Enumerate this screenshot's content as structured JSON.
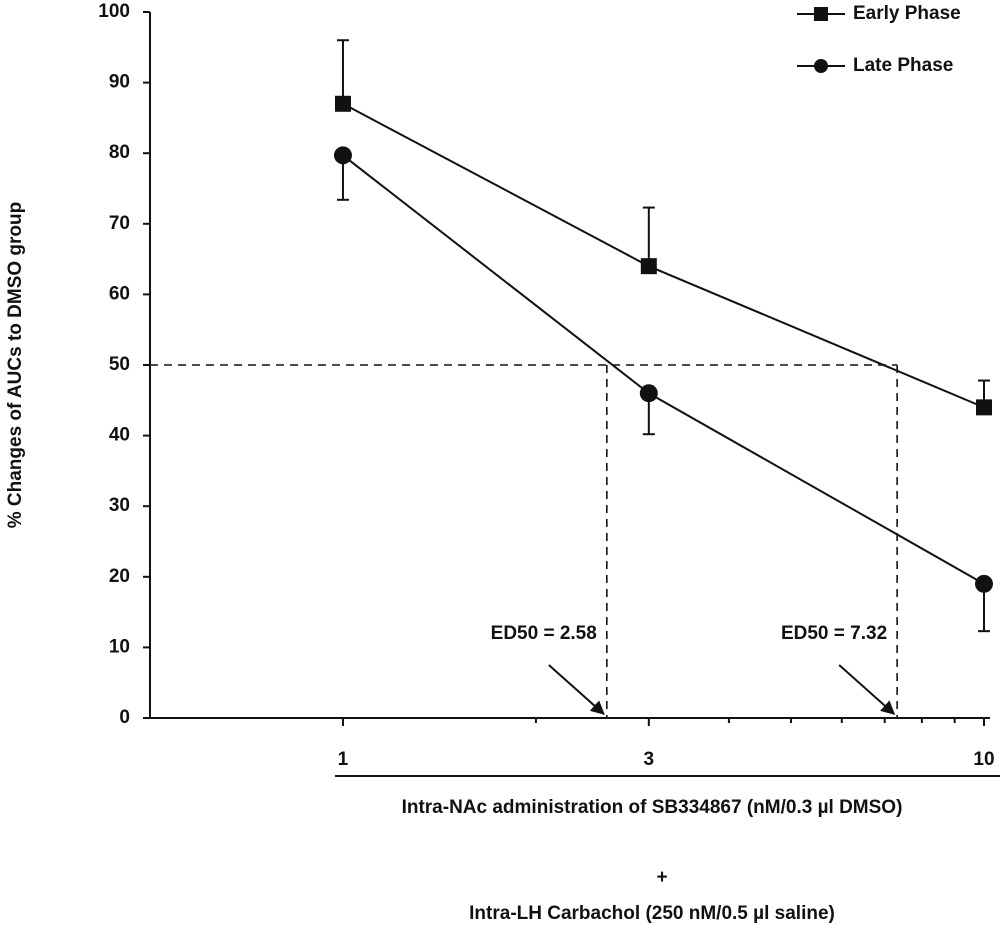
{
  "chart_data": {
    "type": "line",
    "y_label": "% Changes of AUCs to DMSO group",
    "x_label": [
      "Intra-NAc administration of SB334867 (nM/0.3 µl DMSO)",
      "+",
      "Intra-LH Carbachol (250 nM/0.5 µl saline)"
    ],
    "x": [
      1,
      3,
      10
    ],
    "xlim": [
      0.5,
      10
    ],
    "xticks": [
      1,
      3,
      10
    ],
    "xminor_ticks": [
      2,
      4,
      5,
      6,
      7,
      8,
      9
    ],
    "xscale": "log",
    "ylim": [
      0,
      100
    ],
    "yticks": [
      0,
      10,
      20,
      30,
      40,
      50,
      60,
      70,
      80,
      90,
      100
    ],
    "series": [
      {
        "name": "Early Phase",
        "color": "#111111",
        "marker": "square",
        "values": [
          87,
          64,
          44
        ],
        "errors": [
          9,
          8.3,
          3.8
        ],
        "error_direction": "up"
      },
      {
        "name": "Late Phase",
        "color": "#111111",
        "marker": "circle",
        "values": [
          79.7,
          46,
          19
        ],
        "errors": [
          6.3,
          5.8,
          6.7
        ],
        "error_direction": "down"
      }
    ],
    "ed50_level": 50,
    "annotations": [
      {
        "text": "ED50 = 2.58",
        "x": 2.58
      },
      {
        "text": "ED50 = 7.32",
        "x": 7.32
      }
    ],
    "legend": "top-right"
  }
}
